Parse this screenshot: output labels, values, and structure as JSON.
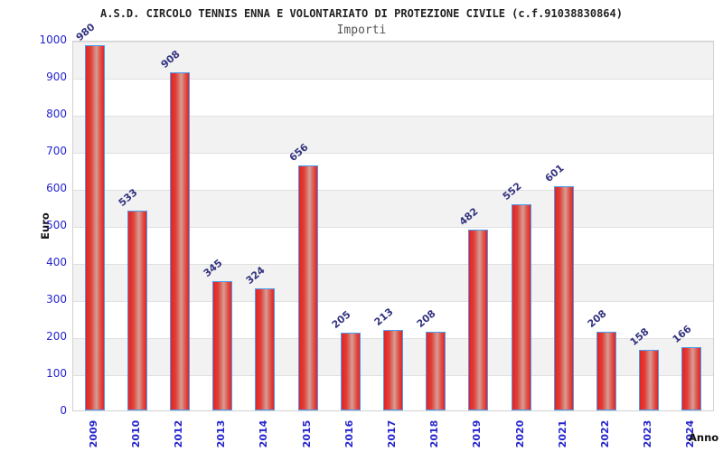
{
  "title": "A.S.D. CIRCOLO TENNIS ENNA E VOLONTARIATO DI PROTEZIONE CIVILE (c.f.91038830864)",
  "subtitle": "Importi",
  "chart_data": {
    "type": "bar",
    "title": "Importi",
    "categories": [
      "2009",
      "2010",
      "2012",
      "2013",
      "2014",
      "2015",
      "2016",
      "2017",
      "2018",
      "2019",
      "2020",
      "2021",
      "2022",
      "2023",
      "2024"
    ],
    "values": [
      980,
      533,
      908,
      345,
      324,
      656,
      205,
      213,
      208,
      482,
      552,
      601,
      208,
      158,
      166
    ],
    "xlabel": "Anno",
    "ylabel": "Euro",
    "ylim": [
      0,
      1000
    ],
    "ytick_step": 100,
    "yticks": [
      "0",
      "100",
      "200",
      "300",
      "400",
      "500",
      "600",
      "700",
      "800",
      "900",
      "1000"
    ],
    "grid": true,
    "legend_position": "none",
    "band_fill": "alternating horizontal gray/white bands per 100 units",
    "colors": {
      "bar_edge_red": "#e62222",
      "bar_highlight": "#d79d94",
      "bar_border_blue": "#4a9cf0",
      "axis_tick_blue": "#2525cd",
      "value_label_navy": "#333380",
      "band_gray": "#f2f2f2",
      "gridline_gray": "#e0e0e0",
      "plot_border_gray": "#d2d2d2",
      "title_color": "#222222",
      "subtitle_color": "#555555",
      "axis_title_black": "#111111"
    }
  }
}
